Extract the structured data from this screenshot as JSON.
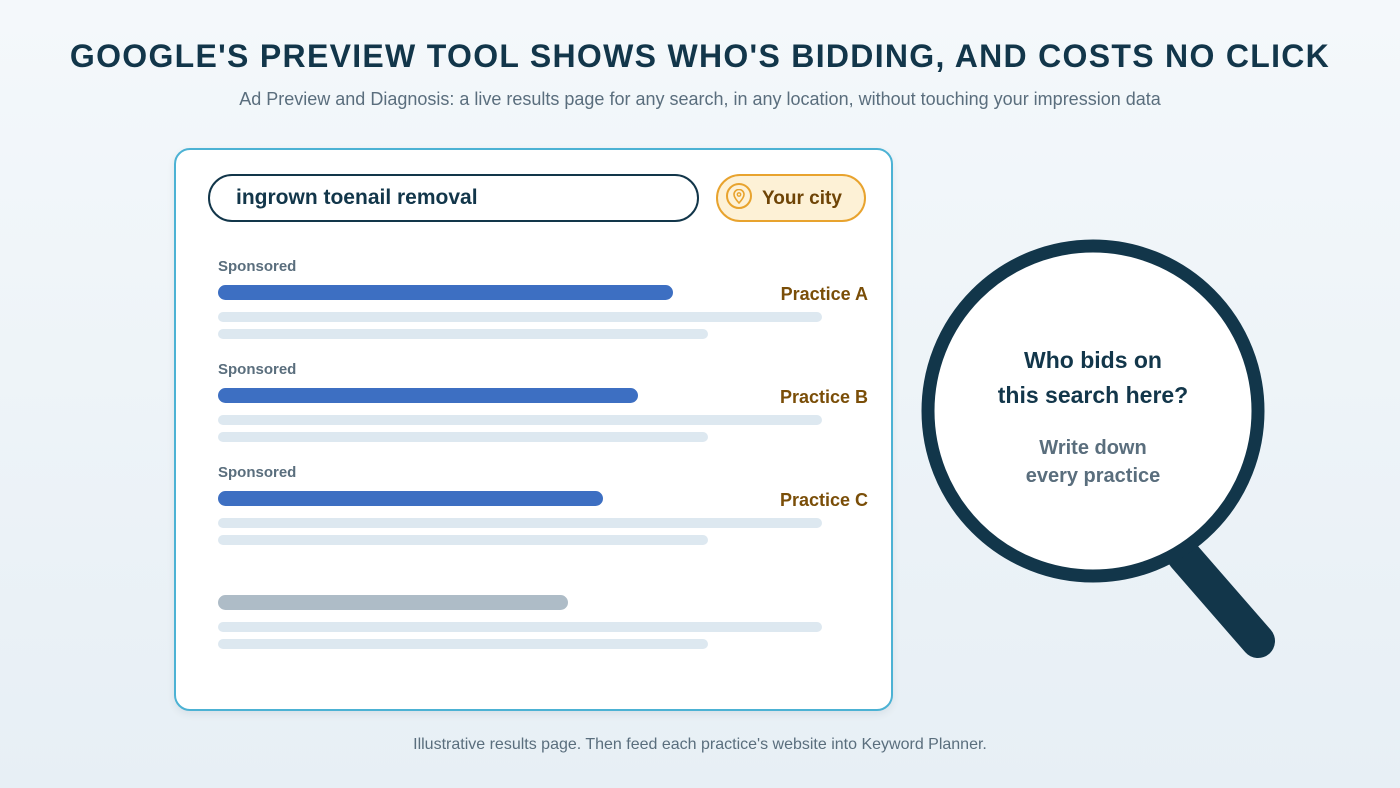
{
  "header": {
    "title": "GOOGLE'S PREVIEW TOOL SHOWS WHO'S BIDDING, AND COSTS NO CLICK",
    "subtitle": "Ad Preview and Diagnosis: a live results page for any search, in any location, without touching your impression data"
  },
  "search": {
    "query": "ingrown toenail removal",
    "location": "Your city",
    "location_icon": "map-pin-icon"
  },
  "results": [
    {
      "label": "Sponsored",
      "practice": "Practice A"
    },
    {
      "label": "Sponsored",
      "practice": "Practice B"
    },
    {
      "label": "Sponsored",
      "practice": "Practice C"
    }
  ],
  "magnifier": {
    "question_line1": "Who bids on",
    "question_line2": "this search here?",
    "instruction_line1": "Write down",
    "instruction_line2": "every practice"
  },
  "footer": {
    "note": "Illustrative results page. Then feed each practice's website into Keyword Planner."
  },
  "colors": {
    "title": "#12364a",
    "accent_blue": "#3d6fc2",
    "card_border": "#4cb2d4",
    "location_border": "#e8a32e",
    "location_fill": "#fdf1d6",
    "practice_text": "#7a4e08",
    "muted_text": "#5a6e7d",
    "placeholder_line": "#dde8f0",
    "organic_bar": "#aebcc7"
  }
}
